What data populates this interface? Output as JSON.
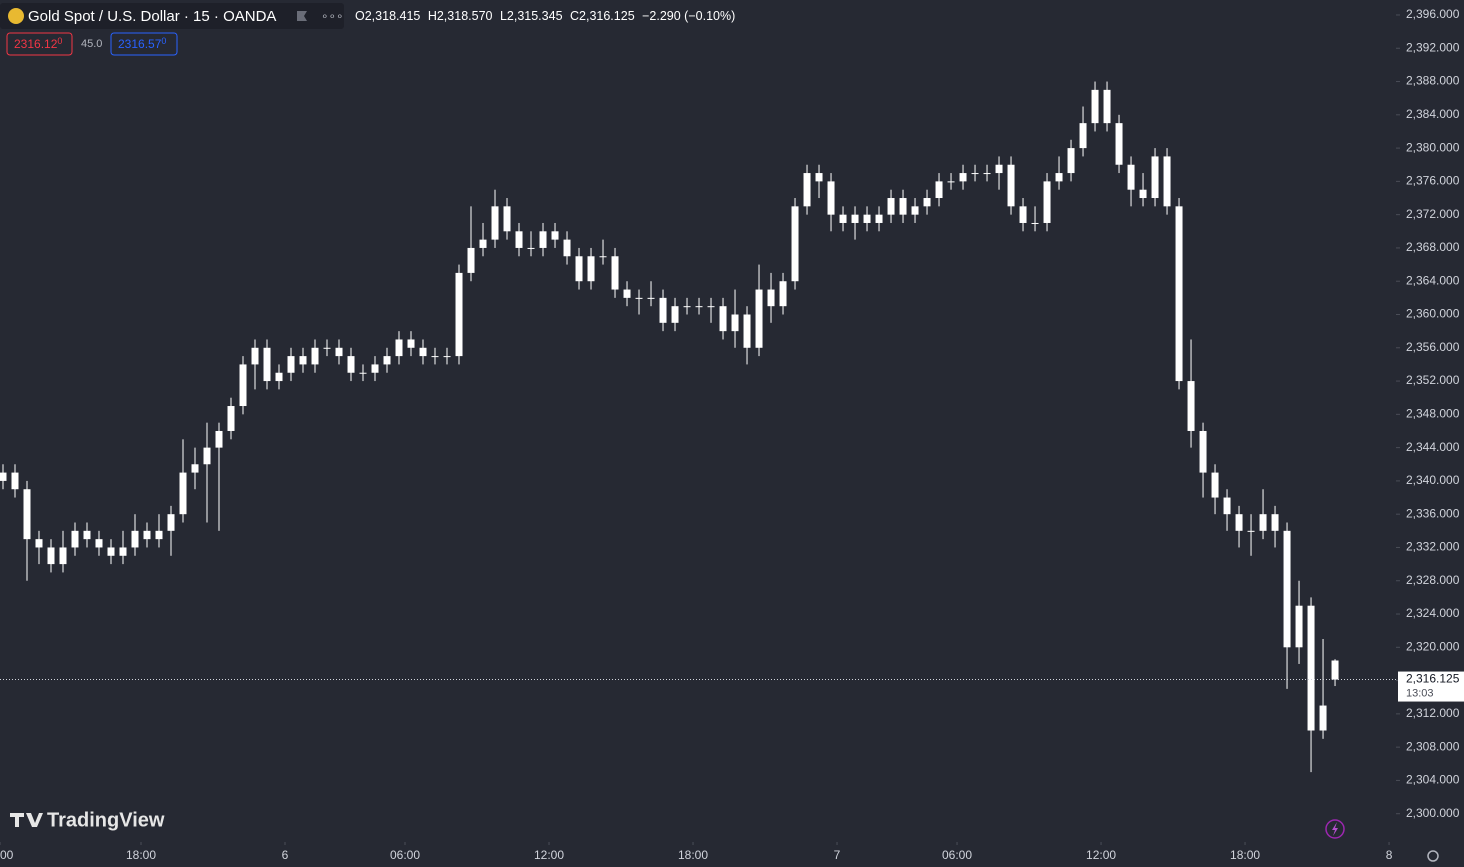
{
  "header": {
    "symbol": "Gold Spot / U.S. Dollar · 15 · OANDA",
    "ohlc": [
      {
        "key": "O",
        "value": "2,318.415"
      },
      {
        "key": "H",
        "value": "2,318.570"
      },
      {
        "key": "L",
        "value": "2,315.345"
      },
      {
        "key": "C",
        "value": "2,316.125"
      }
    ],
    "change": "−2.290 (−0.10%)",
    "bid": {
      "price": "2316.12",
      "pip": "0"
    },
    "spread": "45.0",
    "ask": {
      "price": "2316.57",
      "pip": "0"
    }
  },
  "watermark": "TradingView",
  "chart_data": {
    "type": "candlestick",
    "color": "#ffffff",
    "open": [
      2340,
      2341,
      2339,
      2333,
      2332,
      2330,
      2332,
      2334,
      2333,
      2332,
      2331,
      2332,
      2334,
      2333,
      2334,
      2336,
      2341,
      2342,
      2344,
      2346,
      2349,
      2354,
      2356,
      2352,
      2353,
      2355,
      2354,
      2356,
      2356,
      2355,
      2353,
      2353,
      2354,
      2355,
      2357,
      2356,
      2355,
      2355,
      2355,
      2365,
      2368,
      2369,
      2373,
      2370,
      2368,
      2368,
      2370,
      2369,
      2367,
      2364,
      2367,
      2367,
      2363,
      2362,
      2362,
      2362,
      2359,
      2361,
      2361,
      2361,
      2361,
      2358,
      2360,
      2356,
      2363,
      2361,
      2364,
      2373,
      2377,
      2376,
      2372,
      2371,
      2372,
      2371,
      2372,
      2374,
      2372,
      2373,
      2374,
      2376,
      2376,
      2377,
      2377,
      2377,
      2378,
      2373,
      2371,
      2371,
      2376,
      2377,
      2380,
      2383,
      2387,
      2383,
      2378,
      2375,
      2374,
      2379,
      2373,
      2352,
      2346,
      2341,
      2338,
      2336,
      2334,
      2334,
      2336,
      2334,
      2320,
      2325,
      2310,
      2318.415
    ],
    "high": [
      2342,
      2342,
      2340,
      2334,
      2333,
      2334,
      2335,
      2335,
      2334,
      2333,
      2334,
      2336,
      2335,
      2336,
      2337,
      2345,
      2344,
      2347,
      2347,
      2350,
      2355,
      2357,
      2357,
      2354,
      2356,
      2356,
      2357,
      2357,
      2357,
      2356,
      2354,
      2355,
      2356,
      2358,
      2358,
      2357,
      2356,
      2356,
      2366,
      2373,
      2371,
      2375,
      2374,
      2371,
      2370,
      2371,
      2371,
      2370,
      2368,
      2368,
      2369,
      2368,
      2364,
      2363,
      2364,
      2363,
      2362,
      2362,
      2362,
      2362,
      2362,
      2363,
      2361,
      2366,
      2365,
      2365,
      2374,
      2378,
      2378,
      2377,
      2373,
      2373,
      2373,
      2373,
      2375,
      2375,
      2374,
      2375,
      2377,
      2377,
      2378,
      2378,
      2378,
      2379,
      2379,
      2374,
      2373,
      2377,
      2379,
      2381,
      2385,
      2388,
      2388,
      2384,
      2379,
      2377,
      2380,
      2380,
      2374,
      2357,
      2347,
      2342,
      2339,
      2337,
      2336,
      2339,
      2337,
      2335,
      2328,
      2326,
      2321,
      2318.57
    ],
    "low": [
      2339,
      2338,
      2328,
      2330,
      2329,
      2329,
      2331,
      2332,
      2331,
      2330,
      2330,
      2331,
      2332,
      2332,
      2331,
      2335,
      2339,
      2335,
      2334,
      2345,
      2348,
      2351,
      2351,
      2351,
      2352,
      2353,
      2353,
      2355,
      2354,
      2352,
      2352,
      2352,
      2353,
      2354,
      2355,
      2354,
      2354,
      2354,
      2354,
      2364,
      2367,
      2368,
      2369,
      2367,
      2367,
      2367,
      2368,
      2366,
      2363,
      2363,
      2366,
      2362,
      2361,
      2360,
      2361,
      2358,
      2358,
      2360,
      2360,
      2359,
      2357,
      2356,
      2354,
      2355,
      2359,
      2360,
      2363,
      2372,
      2374,
      2370,
      2370,
      2369,
      2370,
      2370,
      2371,
      2371,
      2371,
      2372,
      2373,
      2375,
      2375,
      2376,
      2376,
      2375,
      2372,
      2370,
      2370,
      2370,
      2375,
      2376,
      2379,
      2382,
      2382,
      2377,
      2373,
      2373,
      2373,
      2372,
      2351,
      2344,
      2338,
      2336,
      2334,
      2332,
      2331,
      2333,
      2332,
      2315,
      2318,
      2305,
      2309,
      2315.345
    ],
    "close": [
      2341,
      2339,
      2333,
      2332,
      2330,
      2332,
      2334,
      2333,
      2332,
      2331,
      2332,
      2334,
      2333,
      2334,
      2336,
      2341,
      2342,
      2344,
      2346,
      2349,
      2354,
      2356,
      2352,
      2353,
      2355,
      2354,
      2356,
      2356,
      2355,
      2353,
      2353,
      2354,
      2355,
      2357,
      2356,
      2355,
      2355,
      2355,
      2365,
      2368,
      2369,
      2373,
      2370,
      2368,
      2368,
      2370,
      2369,
      2367,
      2364,
      2367,
      2367,
      2363,
      2362,
      2362,
      2362,
      2359,
      2361,
      2361,
      2361,
      2361,
      2358,
      2360,
      2356,
      2363,
      2361,
      2364,
      2373,
      2377,
      2376,
      2372,
      2371,
      2372,
      2371,
      2372,
      2374,
      2372,
      2373,
      2374,
      2376,
      2376,
      2377,
      2377,
      2377,
      2378,
      2373,
      2371,
      2371,
      2376,
      2377,
      2380,
      2383,
      2387,
      2383,
      2378,
      2375,
      2374,
      2379,
      2373,
      2352,
      2346,
      2341,
      2338,
      2336,
      2334,
      2334,
      2336,
      2334,
      2320,
      2325,
      2310,
      2313,
      2316.125
    ],
    "xlim": [
      -0.25,
      116.08
    ],
    "xticks": [
      {
        "value": -0.25,
        "label": "00"
      },
      {
        "value": 11.5,
        "label": "18:00"
      },
      {
        "value": 23.5,
        "label": "6"
      },
      {
        "value": 33.5,
        "label": "06:00"
      },
      {
        "value": 45.5,
        "label": "12:00"
      },
      {
        "value": 57.5,
        "label": "18:00"
      },
      {
        "value": 69.5,
        "label": "7"
      },
      {
        "value": 79.5,
        "label": "06:00"
      },
      {
        "value": 91.5,
        "label": "12:00"
      },
      {
        "value": 103.5,
        "label": "18:00"
      },
      {
        "value": 115.5,
        "label": "8"
      }
    ],
    "ylim": [
      2296.6,
      2397.8
    ],
    "yticks": [
      {
        "value": 2300,
        "label": "2,300.000"
      },
      {
        "value": 2304,
        "label": "2,304.000"
      },
      {
        "value": 2308,
        "label": "2,308.000"
      },
      {
        "value": 2312,
        "label": "2,312.000"
      },
      {
        "value": 2316,
        "label": "2,316.000"
      },
      {
        "value": 2320,
        "label": "2,320.000"
      },
      {
        "value": 2324,
        "label": "2,324.000"
      },
      {
        "value": 2328,
        "label": "2,328.000"
      },
      {
        "value": 2332,
        "label": "2,332.000"
      },
      {
        "value": 2336,
        "label": "2,336.000"
      },
      {
        "value": 2340,
        "label": "2,340.000"
      },
      {
        "value": 2344,
        "label": "2,344.000"
      },
      {
        "value": 2348,
        "label": "2,348.000"
      },
      {
        "value": 2352,
        "label": "2,352.000"
      },
      {
        "value": 2356,
        "label": "2,356.000"
      },
      {
        "value": 2360,
        "label": "2,360.000"
      },
      {
        "value": 2364,
        "label": "2,364.000"
      },
      {
        "value": 2368,
        "label": "2,368.000"
      },
      {
        "value": 2372,
        "label": "2,372.000"
      },
      {
        "value": 2376,
        "label": "2,376.000"
      },
      {
        "value": 2380,
        "label": "2,380.000"
      },
      {
        "value": 2384,
        "label": "2,384.000"
      },
      {
        "value": 2388,
        "label": "2,388.000"
      },
      {
        "value": 2392,
        "label": "2,392.000"
      },
      {
        "value": 2396,
        "label": "2,396.000"
      }
    ],
    "last_price": {
      "value": 2316.125,
      "label": "2,316.125"
    },
    "countdown": "13:03"
  }
}
